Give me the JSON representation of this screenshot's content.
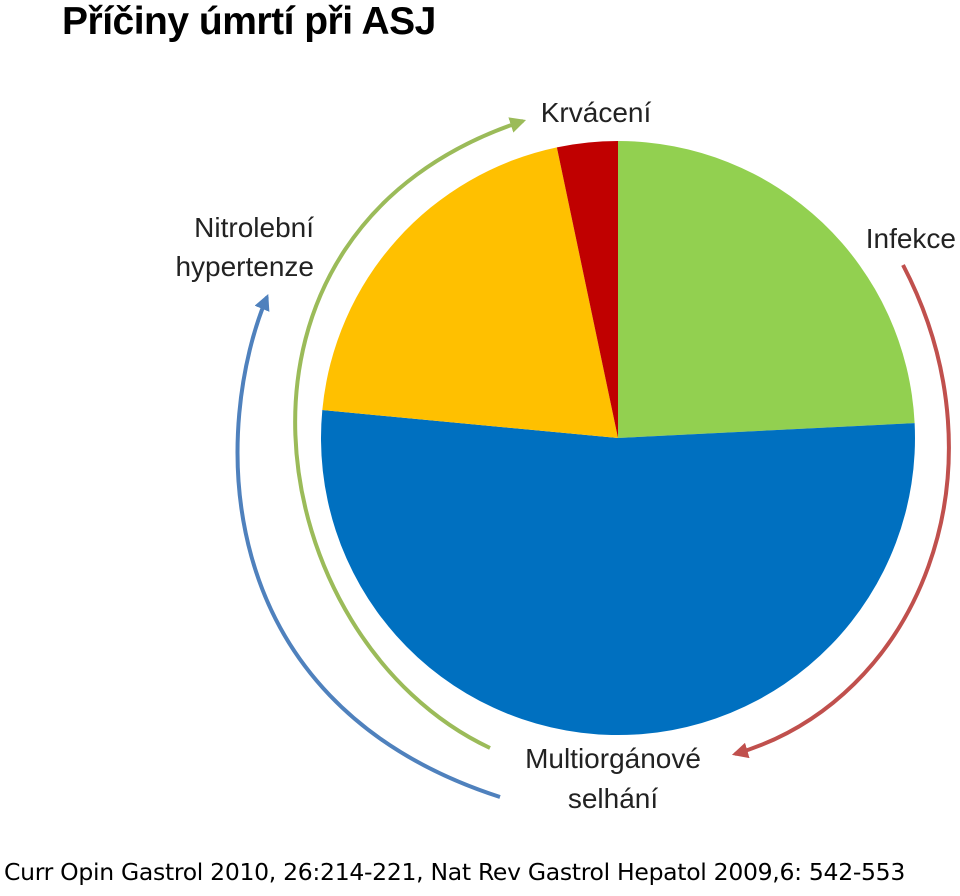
{
  "title": "Příčiny úmrtí při ASJ",
  "citation": "Curr Opin Gastrol 2010, 26:214-221, Nat Rev Gastrol Hepatol 2009,6: 542-553",
  "chart_data": {
    "type": "pie",
    "slices": [
      {
        "label": "Infekce",
        "value": 24.2,
        "color": "#92d050"
      },
      {
        "label": "Multiorgánové selhání",
        "value": 52.3,
        "color": "#0070c0"
      },
      {
        "label": "Nitrolební hypertenze",
        "value": 20.2,
        "color": "#ffc000"
      },
      {
        "label": "Krvácení",
        "value": 3.3,
        "color": "#c00000"
      }
    ],
    "labels": {
      "krvaceni": "Krvácení",
      "nitrolebni_line1": "Nitrolební",
      "nitrolebni_line2": "hypertenze",
      "infekce": "Infekce",
      "multi_line1": "Multiorgánové",
      "multi_line2": "selhání"
    },
    "arrow_colors": {
      "green": "#9bbb59",
      "blue": "#4f81bd",
      "red": "#c0504d"
    }
  }
}
